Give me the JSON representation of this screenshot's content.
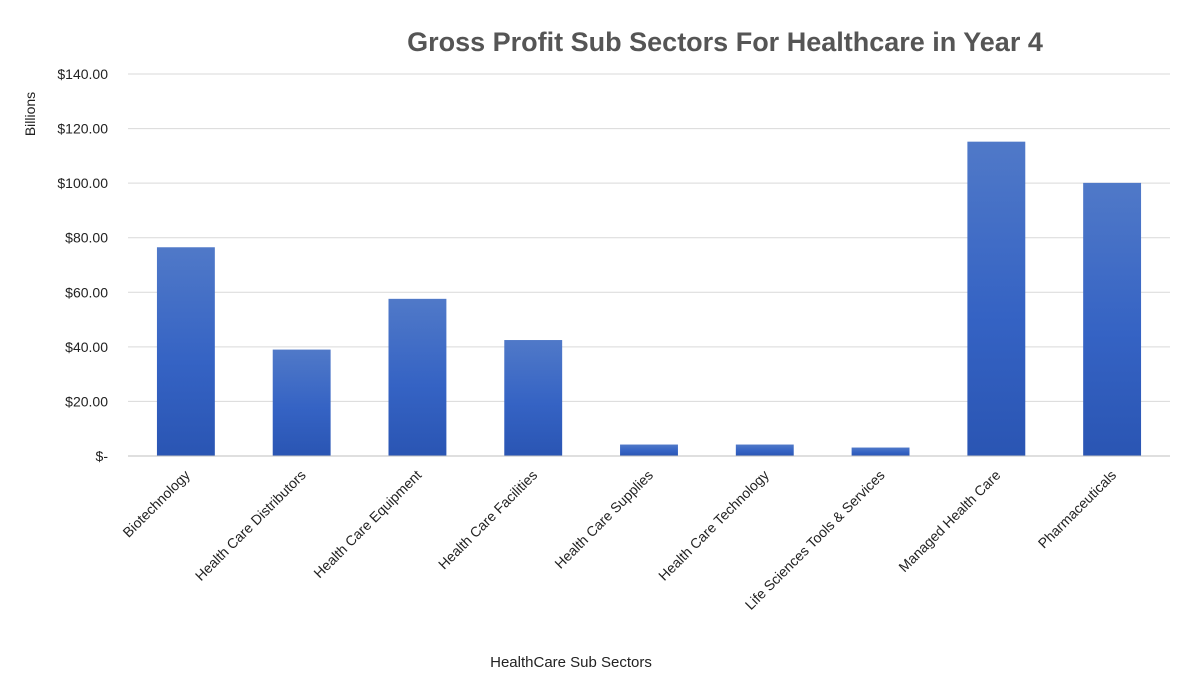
{
  "chart_data": {
    "type": "bar",
    "title": "Gross Profit Sub Sectors For Healthcare in Year 4",
    "xlabel": "HealthCare Sub Sectors",
    "ylabel": "Billions",
    "ylim": [
      0,
      140
    ],
    "ytick_values": [
      0,
      20,
      40,
      60,
      80,
      100,
      120,
      140
    ],
    "ytick_labels": [
      "$-",
      "$20.00",
      "$40.00",
      "$60.00",
      "$80.00",
      "$100.00",
      "$120.00",
      "$140.00"
    ],
    "grid": true,
    "legend": "none",
    "categories": [
      "Biotechnology",
      "Health Care Distributors",
      "Health Care Equipment",
      "Health Care Facilities",
      "Health Care Supplies",
      "Health Care Technology",
      "Life Sciences Tools & Services",
      "Managed Health Care",
      "Pharmaceuticals"
    ],
    "values": [
      76.5,
      39,
      57.6,
      42.5,
      4.2,
      4.2,
      3.1,
      115.2,
      100.1
    ],
    "colors": {
      "bar_top": "#5079c8",
      "bar_mid": "#3563c4",
      "bar_bottom": "#2a55b3",
      "grid": "#d9d9d9",
      "axis": "#bfbfbf",
      "text": "#222222",
      "title": "#555555"
    }
  }
}
